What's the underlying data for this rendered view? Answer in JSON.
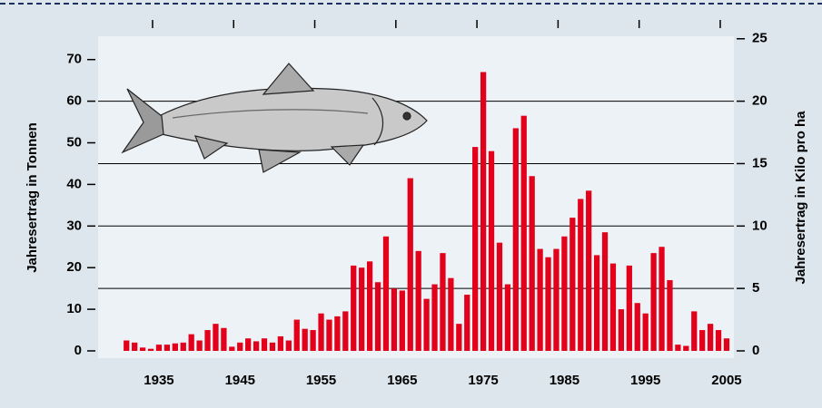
{
  "chart_data": {
    "type": "bar",
    "y_label": "Jahresertrag in Tonnen",
    "y2_label": "Jahresertrag in Kilo pro ha",
    "x": [
      1931,
      1932,
      1933,
      1934,
      1935,
      1936,
      1937,
      1938,
      1939,
      1940,
      1941,
      1942,
      1943,
      1944,
      1945,
      1946,
      1947,
      1948,
      1949,
      1950,
      1951,
      1952,
      1953,
      1954,
      1955,
      1956,
      1957,
      1958,
      1959,
      1960,
      1961,
      1962,
      1963,
      1964,
      1965,
      1966,
      1967,
      1968,
      1969,
      1970,
      1971,
      1972,
      1973,
      1974,
      1975,
      1976,
      1977,
      1978,
      1979,
      1980,
      1981,
      1982,
      1983,
      1984,
      1985,
      1986,
      1987,
      1988,
      1989,
      1990,
      1991,
      1992,
      1993,
      1994,
      1995,
      1996,
      1997,
      1998,
      1999,
      2000,
      2001,
      2002,
      2003,
      2004,
      2005
    ],
    "values": [
      2.5,
      2,
      0.8,
      0.5,
      1.5,
      1.5,
      1.8,
      2,
      4,
      2.5,
      5,
      6.5,
      5.5,
      1,
      2,
      3,
      2.3,
      3,
      2,
      3.5,
      2.5,
      7.5,
      5.3,
      5,
      9,
      7.5,
      8.3,
      9.5,
      20.5,
      20,
      21.5,
      16.5,
      27.5,
      15,
      14.5,
      41.5,
      24,
      12.5,
      16,
      23.5,
      17.5,
      6.5,
      13.5,
      49,
      67,
      48,
      26,
      16,
      53.5,
      56.5,
      42,
      24.5,
      22.5,
      24.5,
      27.5,
      32,
      36.5,
      38.5,
      23,
      28.5,
      21,
      10,
      20.5,
      11.5,
      9,
      23.5,
      25,
      17,
      1.5,
      1.2,
      9.5,
      5,
      6.5,
      5,
      3
    ],
    "color": "#e2001a",
    "xlim": [
      1927.5,
      2005.9
    ],
    "xticks": [
      1935,
      1945,
      1955,
      1965,
      1975,
      1985,
      1995,
      2005
    ],
    "ylim": [
      0,
      75.6
    ],
    "yticks": [
      0,
      10,
      20,
      30,
      40,
      50,
      60,
      70
    ],
    "y2lim": [
      0,
      25.2
    ],
    "y2ticks": [
      0,
      5,
      10,
      15,
      20,
      25
    ],
    "grid": true
  }
}
